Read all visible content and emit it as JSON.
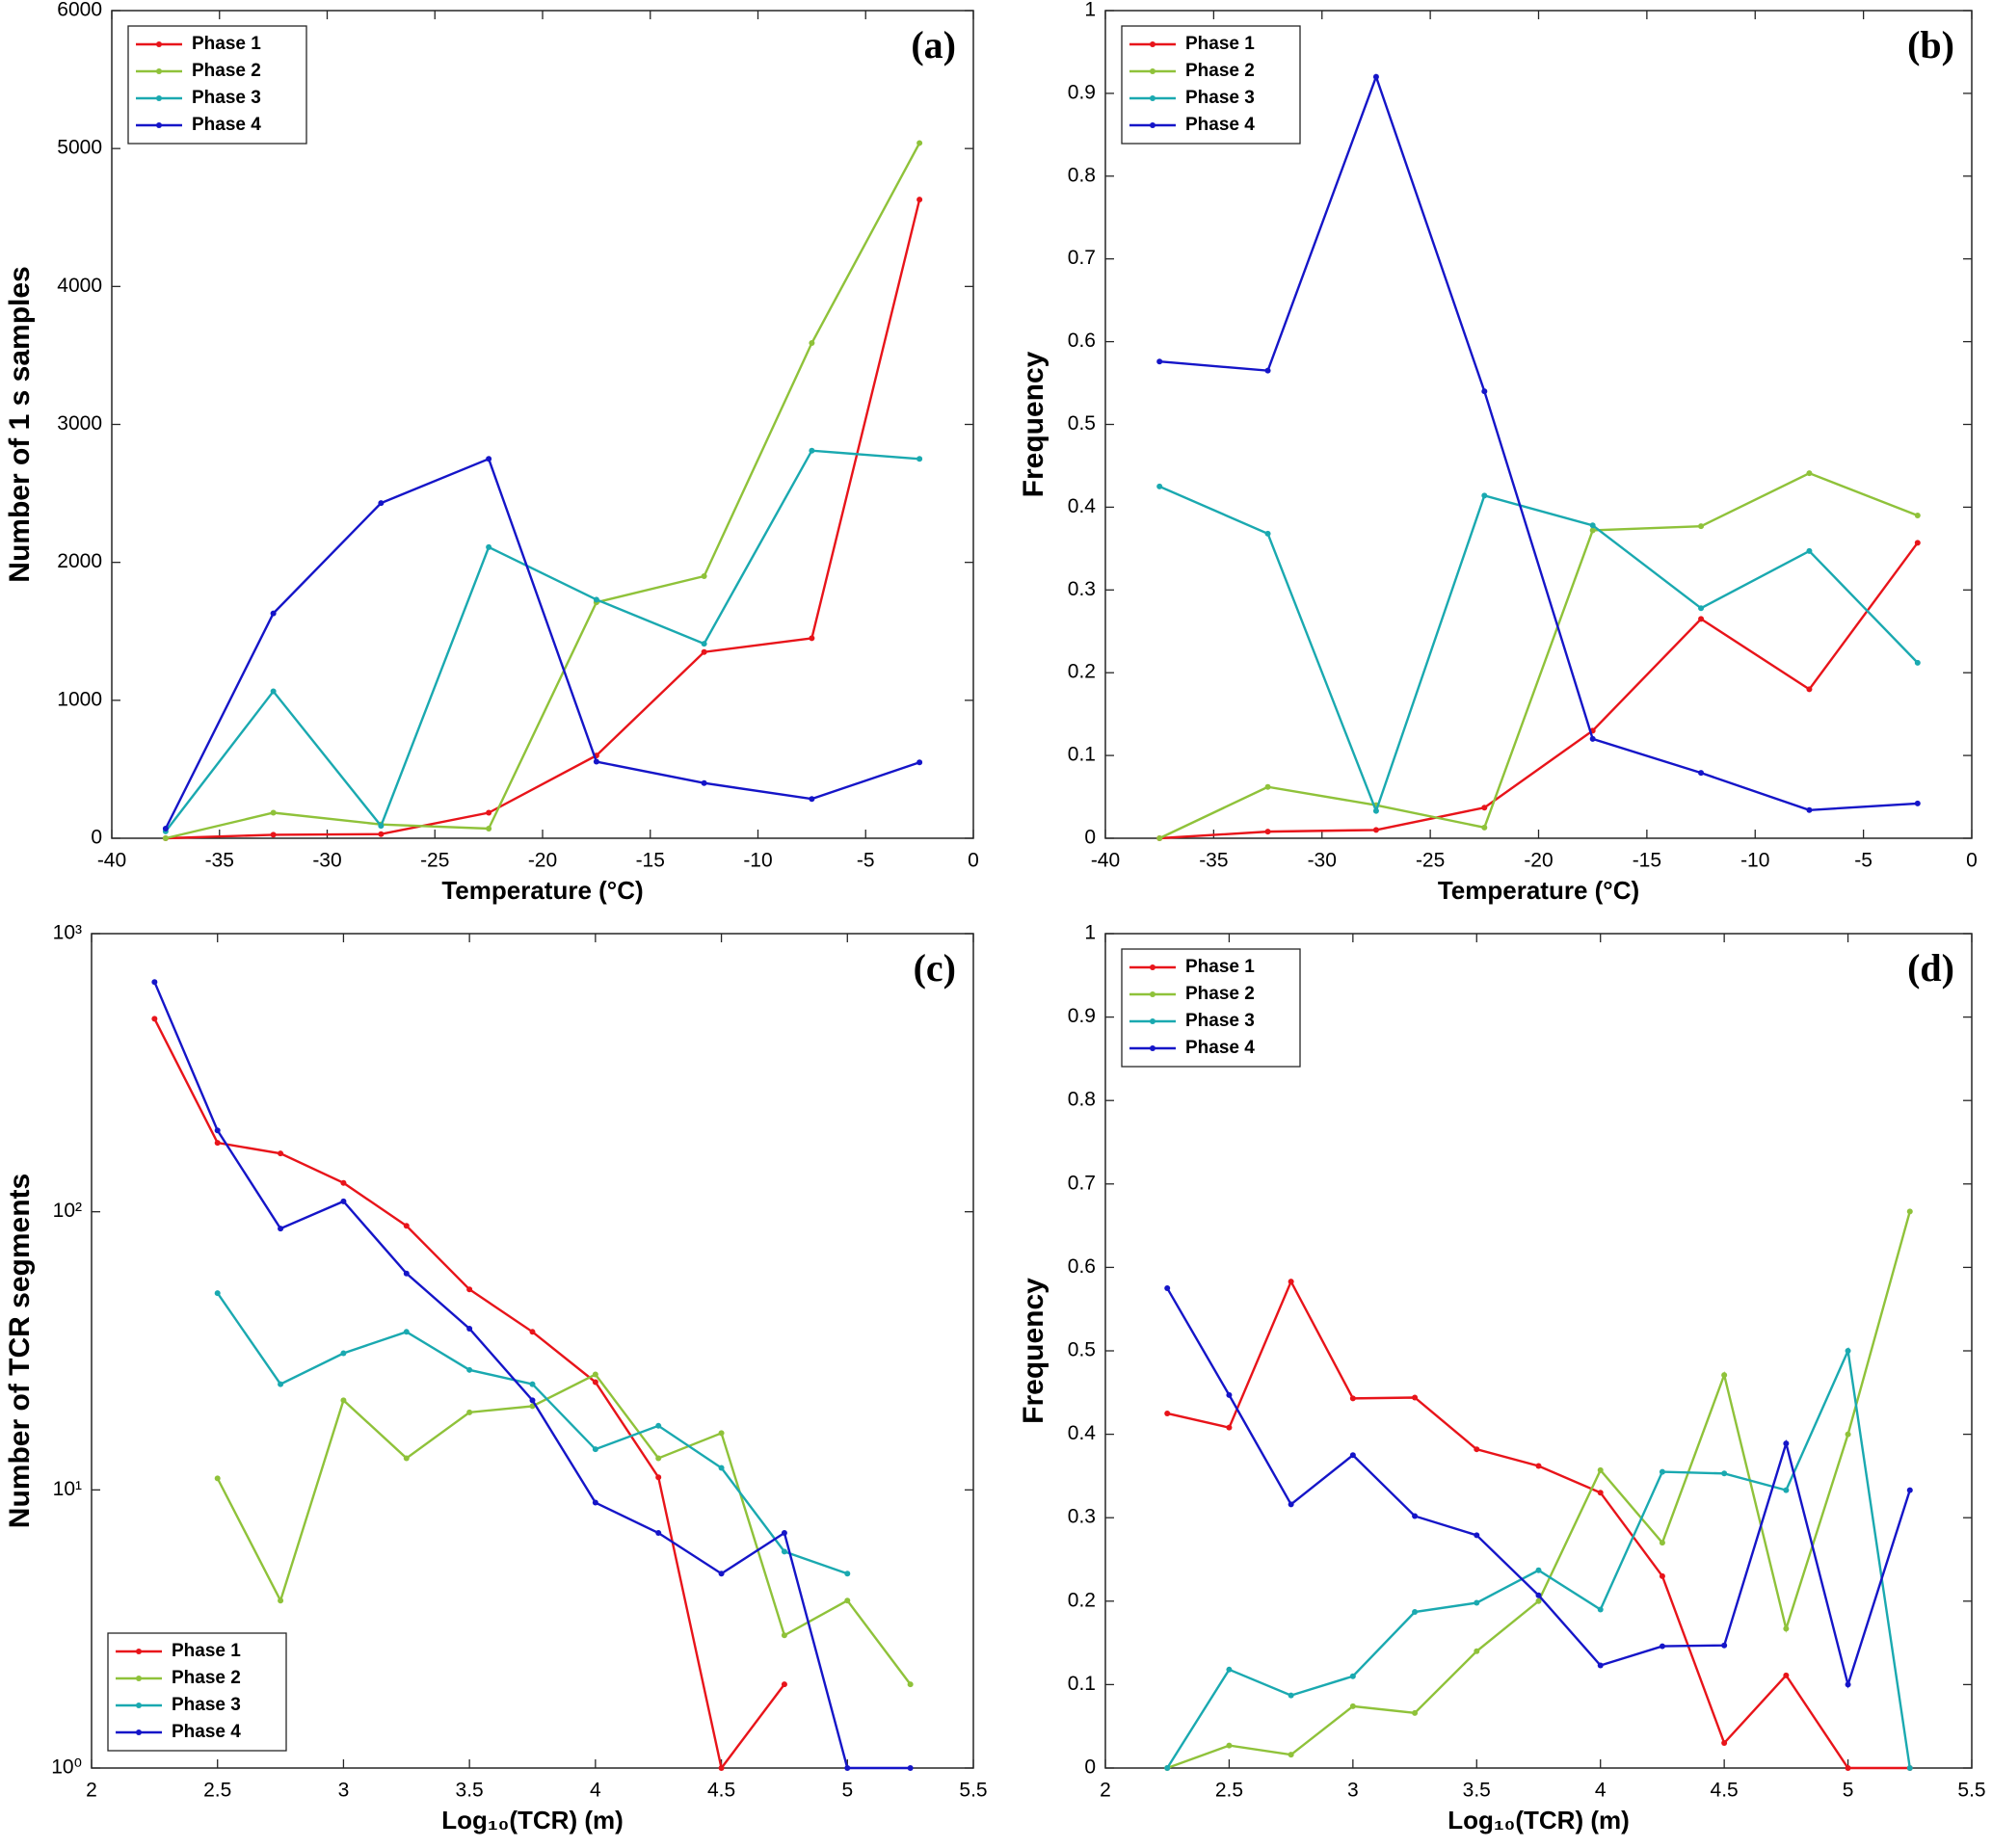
{
  "chart_data": [
    {
      "type": "line",
      "panel_label": "(a)",
      "x_label": "Temperature (°C)",
      "y_label": "Number of 1 s samples",
      "x": [
        -37.5,
        -32.5,
        -27.5,
        -22.5,
        -17.5,
        -12.5,
        -7.5,
        -2.5
      ],
      "xlim": [
        -40,
        0
      ],
      "xticks": [
        -40,
        -35,
        -30,
        -25,
        -20,
        -15,
        -10,
        -5,
        0
      ],
      "ylim": [
        0,
        6000
      ],
      "yticks": [
        0,
        1000,
        2000,
        3000,
        4000,
        5000,
        6000
      ],
      "log_y": false,
      "legend": "upper-left",
      "series": [
        {
          "name": "Phase 1",
          "color": "#e8141a",
          "values": [
            0,
            25,
            30,
            185,
            600,
            1350,
            1450,
            4630
          ]
        },
        {
          "name": "Phase 2",
          "color": "#8fc23a",
          "values": [
            0,
            185,
            100,
            70,
            1710,
            1900,
            3590,
            5040
          ]
        },
        {
          "name": "Phase 3",
          "color": "#1aa9b0",
          "values": [
            50,
            1065,
            90,
            2110,
            1730,
            1410,
            2810,
            2750
          ]
        },
        {
          "name": "Phase 4",
          "color": "#1515c8",
          "values": [
            70,
            1630,
            2430,
            2750,
            555,
            400,
            285,
            550
          ]
        }
      ]
    },
    {
      "type": "line",
      "panel_label": "(b)",
      "x_label": "Temperature (°C)",
      "y_label": "Frequency",
      "x": [
        -37.5,
        -32.5,
        -27.5,
        -22.5,
        -17.5,
        -12.5,
        -7.5,
        -2.5
      ],
      "xlim": [
        -40,
        0
      ],
      "xticks": [
        -40,
        -35,
        -30,
        -25,
        -20,
        -15,
        -10,
        -5,
        0
      ],
      "ylim": [
        0,
        1
      ],
      "yticks": [
        0,
        0.1,
        0.2,
        0.3,
        0.4,
        0.5,
        0.6,
        0.7,
        0.8,
        0.9,
        1
      ],
      "log_y": false,
      "legend": "upper-left",
      "series": [
        {
          "name": "Phase 1",
          "color": "#e8141a",
          "values": [
            0,
            0.008,
            0.01,
            0.037,
            0.13,
            0.265,
            0.18,
            0.357
          ]
        },
        {
          "name": "Phase 2",
          "color": "#8fc23a",
          "values": [
            0,
            0.062,
            0.04,
            0.013,
            0.372,
            0.377,
            0.441,
            0.39
          ]
        },
        {
          "name": "Phase 3",
          "color": "#1aa9b0",
          "values": [
            0.425,
            0.368,
            0.033,
            0.414,
            0.378,
            0.278,
            0.347,
            0.212
          ]
        },
        {
          "name": "Phase 4",
          "color": "#1515c8",
          "values": [
            0.576,
            0.565,
            0.92,
            0.54,
            0.12,
            0.079,
            0.034,
            0.042
          ]
        }
      ]
    },
    {
      "type": "line",
      "panel_label": "(c)",
      "x_label": "Log₁₀(TCR) (m)",
      "y_label": "Number of TCR segments",
      "x": [
        2.25,
        2.5,
        2.75,
        3,
        3.25,
        3.5,
        3.75,
        4,
        4.25,
        4.5,
        4.75,
        5,
        5.25
      ],
      "xlim": [
        2,
        5.5
      ],
      "xticks": [
        2,
        2.5,
        3,
        3.5,
        4,
        4.5,
        5,
        5.5
      ],
      "ylim": [
        1,
        1000
      ],
      "yticks": [
        {
          "value": 1,
          "label": "10⁰"
        },
        {
          "value": 10,
          "label": "10¹"
        },
        {
          "value": 100,
          "label": "10²"
        },
        {
          "value": 1000,
          "label": "10³"
        }
      ],
      "log_y": true,
      "legend": "lower-left",
      "series": [
        {
          "name": "Phase 1",
          "color": "#e8141a",
          "values": [
            494,
            177,
            162,
            127,
            89,
            52.6,
            37,
            24.4,
            11.1,
            1,
            2,
            null,
            null
          ]
        },
        {
          "name": "Phase 2",
          "color": "#8fc23a",
          "values": [
            null,
            11,
            4,
            21,
            13,
            19,
            20,
            26,
            13,
            16,
            3,
            4,
            2
          ]
        },
        {
          "name": "Phase 3",
          "color": "#1aa9b0",
          "values": [
            null,
            51,
            24,
            31,
            37,
            27,
            24,
            14,
            17,
            12,
            6,
            5,
            null
          ]
        },
        {
          "name": "Phase 4",
          "color": "#1515c8",
          "values": [
            670,
            196,
            87,
            109,
            60,
            38,
            21,
            9,
            7,
            5,
            7,
            1,
            1
          ]
        }
      ]
    },
    {
      "type": "line",
      "panel_label": "(d)",
      "x_label": "Log₁₀(TCR) (m)",
      "y_label": "Frequency",
      "x": [
        2.25,
        2.5,
        2.75,
        3,
        3.25,
        3.5,
        3.75,
        4,
        4.25,
        4.5,
        4.75,
        5,
        5.25
      ],
      "xlim": [
        2,
        5.5
      ],
      "xticks": [
        2,
        2.5,
        3,
        3.5,
        4,
        4.5,
        5,
        5.5
      ],
      "ylim": [
        0,
        1
      ],
      "yticks": [
        0,
        0.1,
        0.2,
        0.3,
        0.4,
        0.5,
        0.6,
        0.7,
        0.8,
        0.9,
        1
      ],
      "log_y": false,
      "legend": "upper-left",
      "series": [
        {
          "name": "Phase 1",
          "color": "#e8141a",
          "values": [
            0.425,
            0.408,
            0.583,
            0.443,
            0.444,
            0.382,
            0.362,
            0.33,
            0.23,
            0.03,
            0.111,
            0,
            0
          ]
        },
        {
          "name": "Phase 2",
          "color": "#8fc23a",
          "values": [
            0,
            0.027,
            0.016,
            0.074,
            0.066,
            0.14,
            0.2,
            0.357,
            0.27,
            0.471,
            0.167,
            0.4,
            0.667
          ]
        },
        {
          "name": "Phase 3",
          "color": "#1aa9b0",
          "values": [
            0,
            0.118,
            0.087,
            0.11,
            0.187,
            0.198,
            0.237,
            0.19,
            0.355,
            0.353,
            0.333,
            0.5,
            0
          ]
        },
        {
          "name": "Phase 4",
          "color": "#1515c8",
          "values": [
            0.575,
            0.447,
            0.316,
            0.375,
            0.302,
            0.279,
            0.207,
            0.123,
            0.146,
            0.147,
            0.389,
            0.1,
            0.333
          ]
        }
      ]
    }
  ]
}
